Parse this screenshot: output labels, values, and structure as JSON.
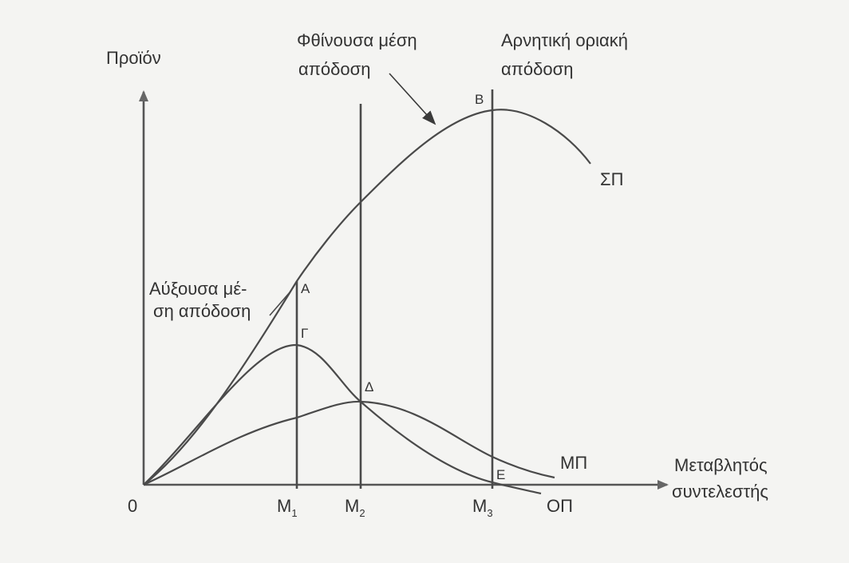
{
  "axes": {
    "y_label": "Προϊόν",
    "x_label_line1": "Μεταβλητός",
    "x_label_line2": "συντελεστής",
    "origin": "0"
  },
  "ticks": {
    "m1": "M",
    "m1_sub": "1",
    "m2": "M",
    "m2_sub": "2",
    "m3": "M",
    "m3_sub": "3"
  },
  "regions": {
    "increasing_line1": "Αύξουσα  μέ-",
    "increasing_line2": "ση απόδοση",
    "decreasing_line1": "Φθίνουσα μέση",
    "decreasing_line2": "απόδοση",
    "negative_line1": "Αρνητική οριακή",
    "negative_line2": "απόδοση"
  },
  "points": {
    "A": "A",
    "B": "B",
    "G": "Γ",
    "D": "Δ",
    "E": "E"
  },
  "curves": {
    "total": "ΣΠ",
    "average": "ΜΠ",
    "marginal": "ΟΠ"
  }
}
